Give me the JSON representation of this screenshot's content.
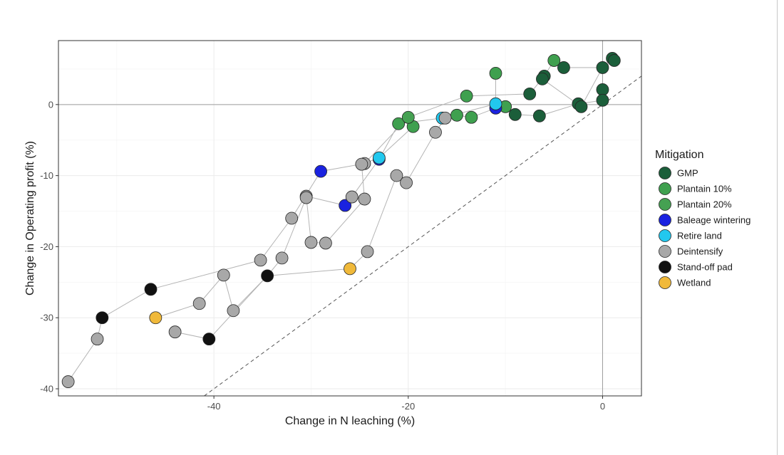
{
  "chart_data": {
    "type": "scatter",
    "title": "",
    "xlabel": "Change in N leaching (%)",
    "ylabel": "Change in Operating profit (%)",
    "xlim": [
      -56,
      4
    ],
    "ylim": [
      -41,
      9
    ],
    "x_ticks": [
      -40,
      -20,
      0
    ],
    "y_ticks": [
      -40,
      -30,
      -20,
      -10,
      0
    ],
    "grid": true,
    "reference_lines": {
      "x": 0,
      "y": 0,
      "diagonal_dashed": "y = x"
    },
    "legend": {
      "title": "Mitigation",
      "position": "right"
    },
    "series": [
      {
        "name": "GMP",
        "color": "#1b5e3a",
        "points": [
          [
            1,
            6.5
          ],
          [
            1.2,
            6.2
          ],
          [
            0,
            5.2
          ],
          [
            -4,
            5.2
          ],
          [
            -6,
            4
          ],
          [
            -6.2,
            3.6
          ],
          [
            -7.5,
            1.5
          ],
          [
            0,
            2.1
          ],
          [
            0,
            0.6
          ],
          [
            -2.5,
            0.1
          ],
          [
            -2.2,
            -0.3
          ],
          [
            -9,
            -1.4
          ],
          [
            -6.5,
            -1.6
          ]
        ]
      },
      {
        "name": "Plantain 10%",
        "color": "#3fa04f",
        "points": [
          [
            -5,
            6.2
          ],
          [
            -11,
            4.4
          ],
          [
            -14,
            1.2
          ],
          [
            -10,
            -0.3
          ],
          [
            -13.5,
            -1.8
          ],
          [
            -15,
            -1.5
          ],
          [
            -19.5,
            -3.1
          ],
          [
            -21,
            -2.7
          ]
        ]
      },
      {
        "name": "Plantain 20%",
        "color": "#45a152",
        "points": [
          [
            -20,
            -1.8
          ]
        ]
      },
      {
        "name": "Baleage wintering",
        "color": "#1a22e0",
        "points": [
          [
            -11,
            -0.5
          ],
          [
            -23,
            -7.7
          ],
          [
            -29,
            -9.4
          ],
          [
            -26.5,
            -14.2
          ]
        ]
      },
      {
        "name": "Retire land",
        "color": "#22c8ee",
        "points": [
          [
            -11,
            0.1
          ],
          [
            -16.5,
            -1.9
          ],
          [
            -23,
            -7.5
          ]
        ]
      },
      {
        "name": "Deintensify",
        "color": "#a8a8a8",
        "points": [
          [
            -16.2,
            -1.9
          ],
          [
            -17.2,
            -3.9
          ],
          [
            -24.5,
            -8.3
          ],
          [
            -24.8,
            -8.4
          ],
          [
            -21.2,
            -10
          ],
          [
            -20.2,
            -11
          ],
          [
            -30.5,
            -12.9
          ],
          [
            -30.5,
            -13.1
          ],
          [
            -25.8,
            -13
          ],
          [
            -24.5,
            -13.3
          ],
          [
            -32,
            -16
          ],
          [
            -30,
            -19.4
          ],
          [
            -28.5,
            -19.5
          ],
          [
            -24.2,
            -20.7
          ],
          [
            -33,
            -21.6
          ],
          [
            -35.2,
            -21.9
          ],
          [
            -39,
            -24
          ],
          [
            -38,
            -29
          ],
          [
            -41.5,
            -28
          ],
          [
            -44,
            -32
          ],
          [
            -52,
            -33
          ],
          [
            -55,
            -39
          ]
        ]
      },
      {
        "name": "Stand-off pad",
        "color": "#111111",
        "points": [
          [
            -34.5,
            -24.1
          ],
          [
            -46.5,
            -26
          ],
          [
            -51.5,
            -30
          ],
          [
            -40.5,
            -33
          ]
        ]
      },
      {
        "name": "Wetland",
        "color": "#f0b93a",
        "points": [
          [
            -26,
            -23.1
          ],
          [
            -46,
            -30
          ]
        ]
      }
    ]
  }
}
